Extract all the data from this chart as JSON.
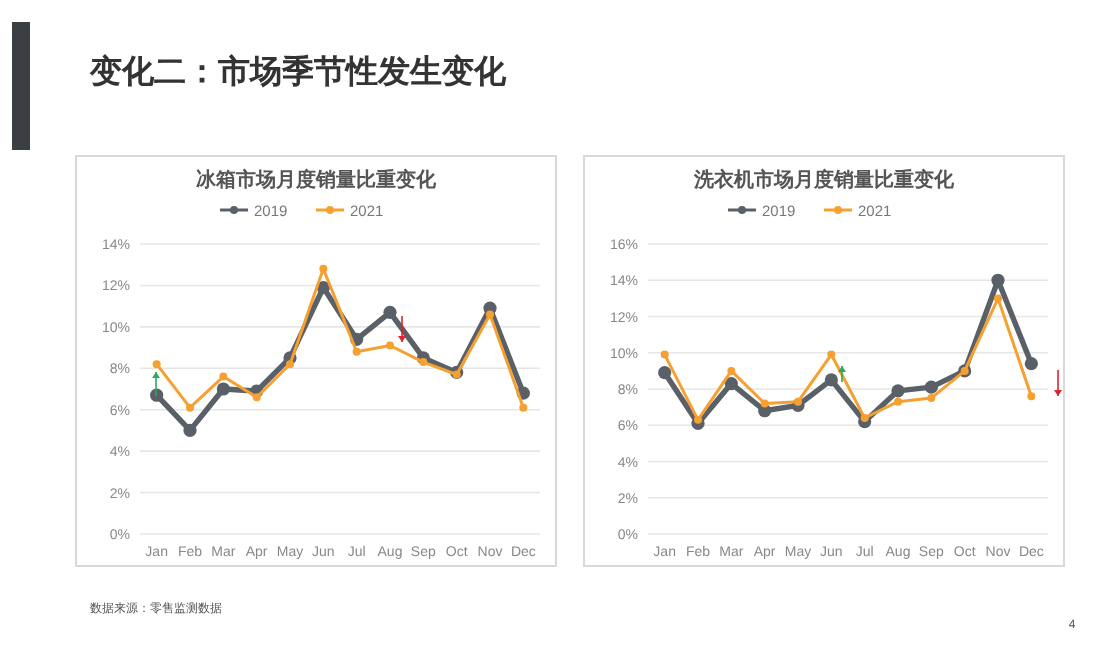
{
  "chart_data": [
    {
      "type": "line",
      "title": "冰箱市场月度销量比重变化",
      "categories": [
        "Jan",
        "Feb",
        "Mar",
        "Apr",
        "May",
        "Jun",
        "Jul",
        "Aug",
        "Sep",
        "Oct",
        "Nov",
        "Dec"
      ],
      "series": [
        {
          "name": "2019",
          "color": "#5a6068",
          "values": [
            6.7,
            5.0,
            7.0,
            6.9,
            8.5,
            11.9,
            9.4,
            10.7,
            8.5,
            7.8,
            10.9,
            6.8
          ]
        },
        {
          "name": "2021",
          "color": "#f5a030",
          "values": [
            8.2,
            6.1,
            7.6,
            6.6,
            8.2,
            12.8,
            8.8,
            9.1,
            8.3,
            7.7,
            10.6,
            6.1
          ]
        }
      ],
      "ylim": [
        0,
        14
      ],
      "yticks": [
        {
          "value": 0,
          "label": "0%"
        },
        {
          "value": 2,
          "label": "2%"
        },
        {
          "value": 4,
          "label": "4%"
        },
        {
          "value": 6,
          "label": "6%"
        },
        {
          "value": 8,
          "label": "8%"
        },
        {
          "value": 10,
          "label": "10%"
        },
        {
          "value": 12,
          "label": "12%"
        },
        {
          "value": 14,
          "label": "14%"
        }
      ],
      "grid": "y",
      "legend": "top",
      "marker": "circle",
      "annotations": [
        "变化二：市场季节性发生变化",
        "数据来源：零售监测数据"
      ]
    },
    {
      "type": "line",
      "title": "洗衣机市场月度销量比重变化",
      "categories": [
        "Jan",
        "Feb",
        "Mar",
        "Apr",
        "May",
        "Jun",
        "Jul",
        "Aug",
        "Sep",
        "Oct",
        "Nov",
        "Dec"
      ],
      "series": [
        {
          "name": "2019",
          "color": "#5a6068",
          "values": [
            8.9,
            6.1,
            8.3,
            6.8,
            7.1,
            8.5,
            6.2,
            7.9,
            8.1,
            9.0,
            14.0,
            9.4
          ]
        },
        {
          "name": "2021",
          "color": "#f5a030",
          "values": [
            9.9,
            6.3,
            9.0,
            7.2,
            7.3,
            9.9,
            6.4,
            7.3,
            7.5,
            9.0,
            13.0,
            7.6
          ]
        }
      ],
      "ylim": [
        0,
        16
      ],
      "yticks": [
        {
          "value": 0,
          "label": "0%"
        },
        {
          "value": 2,
          "label": "2%"
        },
        {
          "value": 4,
          "label": "4%"
        },
        {
          "value": 6,
          "label": "6%"
        },
        {
          "value": 8,
          "label": "8%"
        },
        {
          "value": 10,
          "label": "10%"
        },
        {
          "value": 12,
          "label": "12%"
        },
        {
          "value": 14,
          "label": "14%"
        },
        {
          "value": 16,
          "label": "16%"
        }
      ],
      "grid": "y",
      "legend": "top",
      "marker": "circle",
      "annotations": [
        "4"
      ]
    }
  ]
}
